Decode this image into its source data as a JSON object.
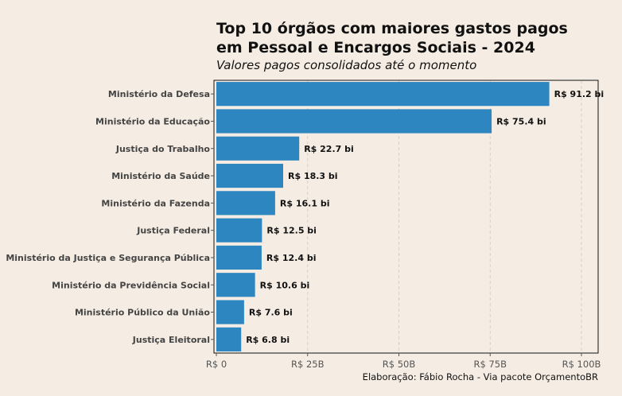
{
  "chart_data": {
    "type": "bar",
    "orientation": "horizontal",
    "title": "Top 10 órgãos com maiores gastos pagos em Pessoal e Encargos Sociais - 2024",
    "subtitle": "Valores pagos consolidados até o momento",
    "caption": "Elaboração: Fábio Rocha - Via pacote OrçamentoBR",
    "categories": [
      "Ministério da Defesa",
      "Ministério da Educação",
      "Justiça do Trabalho",
      "Ministério da Saúde",
      "Ministério da Fazenda",
      "Justiça Federal",
      "Ministério da Justiça e Segurança Pública",
      "Ministério da Previdência Social",
      "Ministério Público da União",
      "Justiça Eleitoral"
    ],
    "values": [
      91.2,
      75.4,
      22.7,
      18.3,
      16.1,
      12.5,
      12.4,
      10.6,
      7.6,
      6.8
    ],
    "value_labels": [
      "R$ 91.2 bi",
      "R$ 75.4 bi",
      "R$ 22.7 bi",
      "R$ 18.3 bi",
      "R$ 16.1 bi",
      "R$ 12.5 bi",
      "R$ 12.4 bi",
      "R$ 10.6 bi",
      "R$ 7.6 bi",
      "R$ 6.8 bi"
    ],
    "xlim": [
      0,
      104
    ],
    "x_ticks": [
      0,
      25,
      50,
      75,
      100
    ],
    "x_tick_labels": [
      "R$ 0",
      "R$ 25B",
      "R$ 50B",
      "R$ 75B",
      "R$ 100B"
    ],
    "xlabel": "",
    "ylabel": "",
    "grid": true,
    "legend": "none",
    "bar_color": "#2e86c1"
  }
}
